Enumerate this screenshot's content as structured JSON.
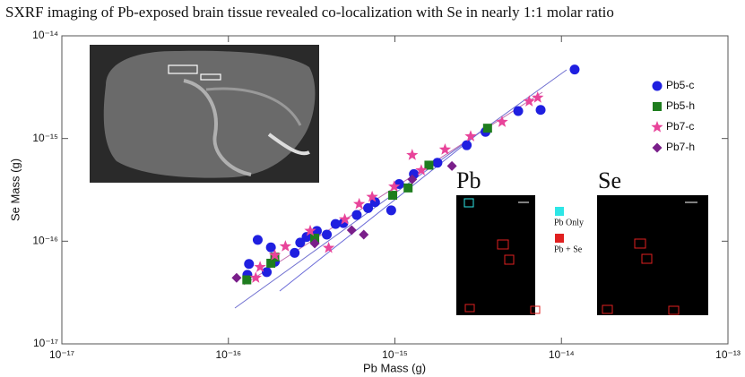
{
  "chart_data": {
    "type": "scatter",
    "title": "SXRF imaging of Pb-exposed brain tissue revealed co-localization with Se in nearly 1:1 molar ratio",
    "x_label": "Pb Mass (g)",
    "y_label": "Se Mass (g)",
    "xscale": "log",
    "yscale": "log",
    "xlim": [
      1e-17,
      1e-13
    ],
    "ylim": [
      1e-17,
      1e-14
    ],
    "xticks": [
      {
        "value": 1e-17,
        "label": "10⁻¹⁷"
      },
      {
        "value": 1e-16,
        "label": "10⁻¹⁶"
      },
      {
        "value": 1e-15,
        "label": "10⁻¹⁵"
      },
      {
        "value": 1e-14,
        "label": "10⁻¹⁴"
      },
      {
        "value": 1e-13,
        "label": "10⁻¹³"
      }
    ],
    "yticks": [
      {
        "value": 1e-17,
        "label": "10⁻¹⁷"
      },
      {
        "value": 1e-16,
        "label": "10⁻¹⁶"
      },
      {
        "value": 1e-15,
        "label": "10⁻¹⁵"
      },
      {
        "value": 1e-14,
        "label": "10⁻¹⁴"
      }
    ],
    "legend": "right",
    "series": [
      {
        "name": "Pb5-c",
        "color": "#1f1fe0",
        "marker": "circle",
        "x": [
          1.2e-14,
          7.5e-15,
          5.5e-15,
          3.5e-15,
          2.7e-15,
          1.8e-15,
          1.3e-15,
          1.06e-15,
          9.5e-16,
          7.6e-16,
          6.9e-16,
          5.9e-16,
          4.9e-16,
          4.4e-16,
          3.9e-16,
          3.4e-16,
          2.95e-16,
          2.7e-16,
          1.5e-16,
          2.5e-16,
          1.9e-16,
          1.7e-16,
          1.33e-16,
          1.3e-16,
          1.8e-16
        ],
        "values": [
          4.7e-15,
          1.9e-15,
          1.85e-15,
          1.16e-15,
          8.6e-16,
          5.8e-16,
          4.5e-16,
          3.6e-16,
          2e-16,
          2.4e-16,
          2.1e-16,
          1.8e-16,
          1.5e-16,
          1.47e-16,
          1.16e-16,
          1.26e-16,
          1.1e-16,
          9.7e-17,
          1.03e-16,
          7.7e-17,
          6.3e-17,
          5e-17,
          6e-17,
          4.7e-17,
          8.7e-17
        ]
      },
      {
        "name": "Pb5-h",
        "color": "#1e7d1e",
        "marker": "square",
        "x": [
          3.6e-15,
          1.6e-15,
          1.2e-15,
          9.7e-16,
          3.3e-16,
          1.9e-16,
          1.8e-16,
          1.29e-16
        ],
        "values": [
          1.26e-15,
          5.5e-16,
          3.3e-16,
          2.8e-16,
          1.07e-16,
          7e-17,
          6.1e-17,
          4.2e-17
        ]
      },
      {
        "name": "Pb7-c",
        "color": "#e8449a",
        "marker": "star",
        "x": [
          7.2e-15,
          6.4e-15,
          4.4e-15,
          2.85e-15,
          2e-15,
          1.44e-15,
          9.9e-16,
          7.3e-16,
          6.1e-16,
          5e-16,
          4e-16,
          3.1e-16,
          2.2e-16,
          1.9e-16,
          1.55e-16,
          1.46e-16,
          1.27e-15
        ],
        "values": [
          2.5e-15,
          2.3e-15,
          1.45e-15,
          1.05e-15,
          7.8e-16,
          4.9e-16,
          3.4e-16,
          2.7e-16,
          2.3e-16,
          1.63e-16,
          8.6e-17,
          1.26e-16,
          8.9e-17,
          7.3e-17,
          5.6e-17,
          4.4e-17,
          6.9e-16
        ]
      },
      {
        "name": "Pb7-h",
        "color": "#7a1f8a",
        "marker": "diamond",
        "x": [
          1.12e-16,
          3.3e-16,
          5.5e-16,
          6.5e-16,
          2.2e-15,
          1.27e-15
        ],
        "values": [
          4.4e-17,
          9.5e-17,
          1.28e-16,
          1.16e-16,
          5.4e-16,
          4e-16
        ]
      }
    ],
    "annotations": [
      "Pb",
      "Se",
      "Pb Only",
      "Pb + Se"
    ]
  }
}
